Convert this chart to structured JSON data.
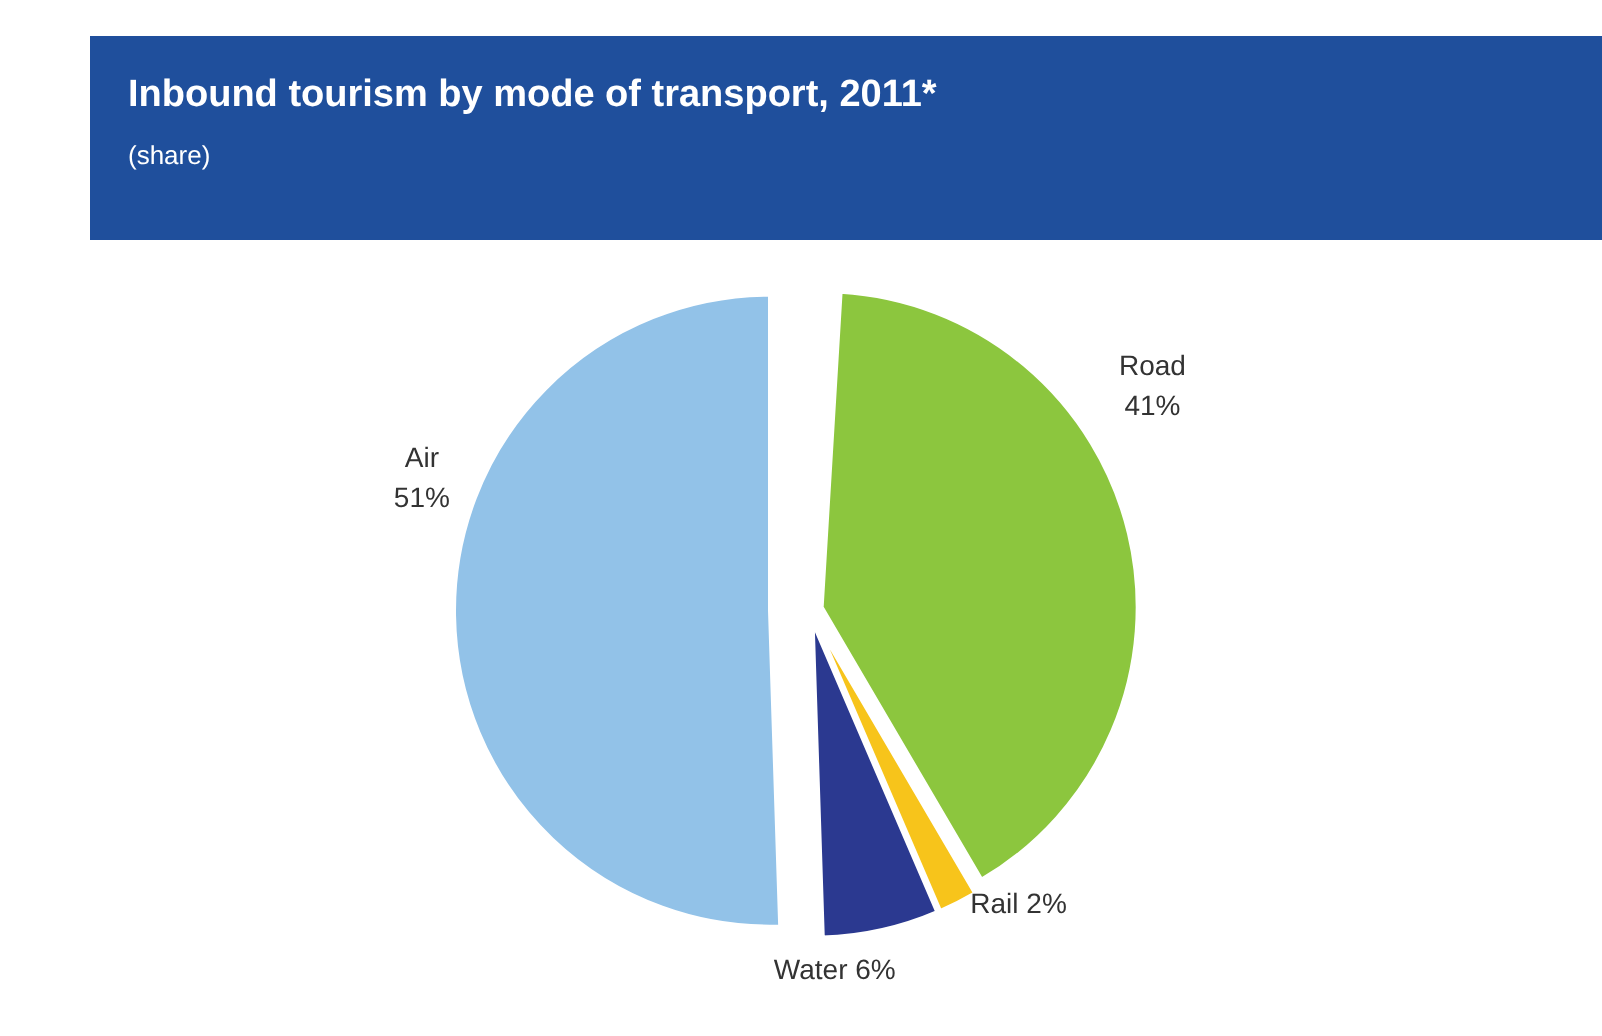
{
  "chart_data": {
    "type": "pie",
    "title": "Inbound tourism by mode of transport, 2011*",
    "subtitle": "(share)",
    "categories": [
      "Road",
      "Rail",
      "Water",
      "Air"
    ],
    "values": [
      41,
      2,
      6,
      51
    ],
    "value_labels": [
      "41%",
      "2%",
      "6%",
      "51%"
    ],
    "colors": [
      "#8cc63e",
      "#f7c41b",
      "#2b3990",
      "#92c2e8"
    ]
  }
}
